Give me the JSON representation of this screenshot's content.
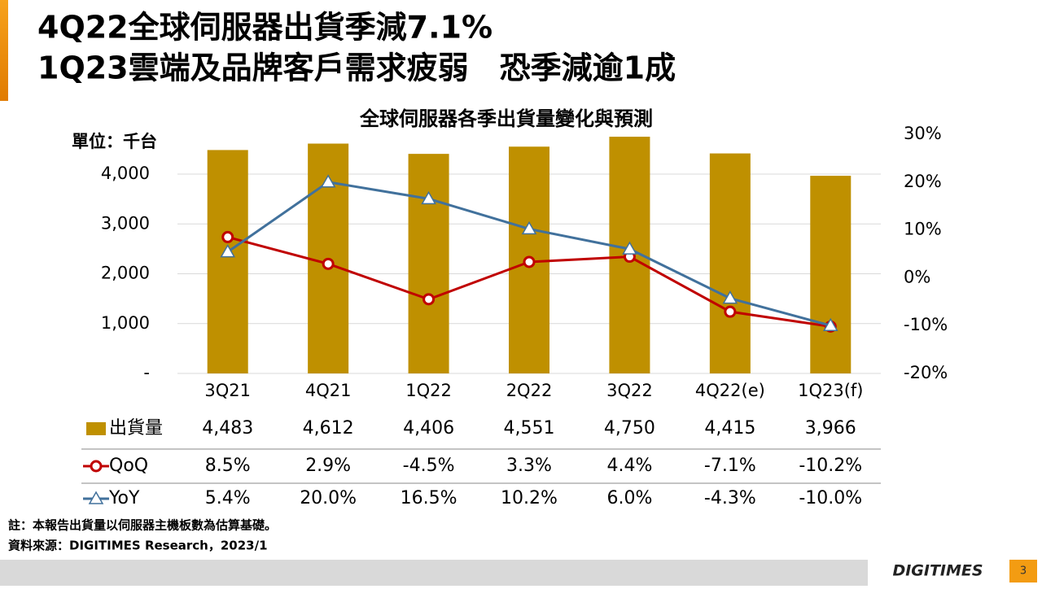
{
  "header": {
    "title_lines": [
      "4Q22全球伺服器出貨季減7.1%",
      "1Q23雲端及品牌客戶需求疲弱　恐季減逾1成"
    ]
  },
  "chart_data": {
    "type": "bar-line",
    "title": "全球伺服器各季出貨量變化與預測",
    "y_label": "單位：千台",
    "categories": [
      "3Q21",
      "4Q21",
      "1Q22",
      "2Q22",
      "3Q22",
      "4Q22(e)",
      "1Q23(f)"
    ],
    "series": [
      {
        "name": "出貨量",
        "type": "bar",
        "color": "#bf9000",
        "values": [
          4483,
          4612,
          4406,
          4551,
          4750,
          4415,
          3966
        ],
        "value_labels": [
          "4,483",
          "4,612",
          "4,406",
          "4,551",
          "4,750",
          "4,415",
          "3,966"
        ]
      },
      {
        "name": "QoQ",
        "type": "line",
        "marker": "circle",
        "axis": "y2",
        "color": "#c00000",
        "values": [
          8.5,
          2.9,
          -4.5,
          3.3,
          4.4,
          -7.1,
          -10.2
        ],
        "value_labels": [
          "8.5%",
          "2.9%",
          "-4.5%",
          "3.3%",
          "4.4%",
          "-7.1%",
          "-10.2%"
        ]
      },
      {
        "name": "YoY",
        "type": "line",
        "marker": "triangle",
        "axis": "y2",
        "color": "#41719c",
        "values": [
          5.4,
          20.0,
          16.5,
          10.2,
          6.0,
          -4.3,
          -10.0
        ],
        "value_labels": [
          "5.4%",
          "20.0%",
          "16.5%",
          "10.2%",
          "6.0%",
          "-4.3%",
          "-10.0%"
        ]
      }
    ],
    "ylim": [
      0,
      4800
    ],
    "yticks": [
      {
        "value": 0,
        "label": "-"
      },
      {
        "value": 1000,
        "label": "1,000"
      },
      {
        "value": 2000,
        "label": "2,000"
      },
      {
        "value": 3000,
        "label": "3,000"
      },
      {
        "value": 4000,
        "label": "4,000"
      }
    ],
    "y2lim": [
      -20,
      30
    ],
    "y2ticks": [
      {
        "value": -20,
        "label": "-20%"
      },
      {
        "value": -10,
        "label": "-10%"
      },
      {
        "value": 0,
        "label": "0%"
      },
      {
        "value": 10,
        "label": "10%"
      },
      {
        "value": 20,
        "label": "20%"
      },
      {
        "value": 30,
        "label": "30%"
      }
    ],
    "grid": true
  },
  "footnotes": [
    "註：本報告出貨量以伺服器主機板數為估算基礎。",
    "資料來源：DIGITIMES Research，2023/1"
  ],
  "footer": {
    "logo": "DIGITIMES",
    "page": "3"
  }
}
